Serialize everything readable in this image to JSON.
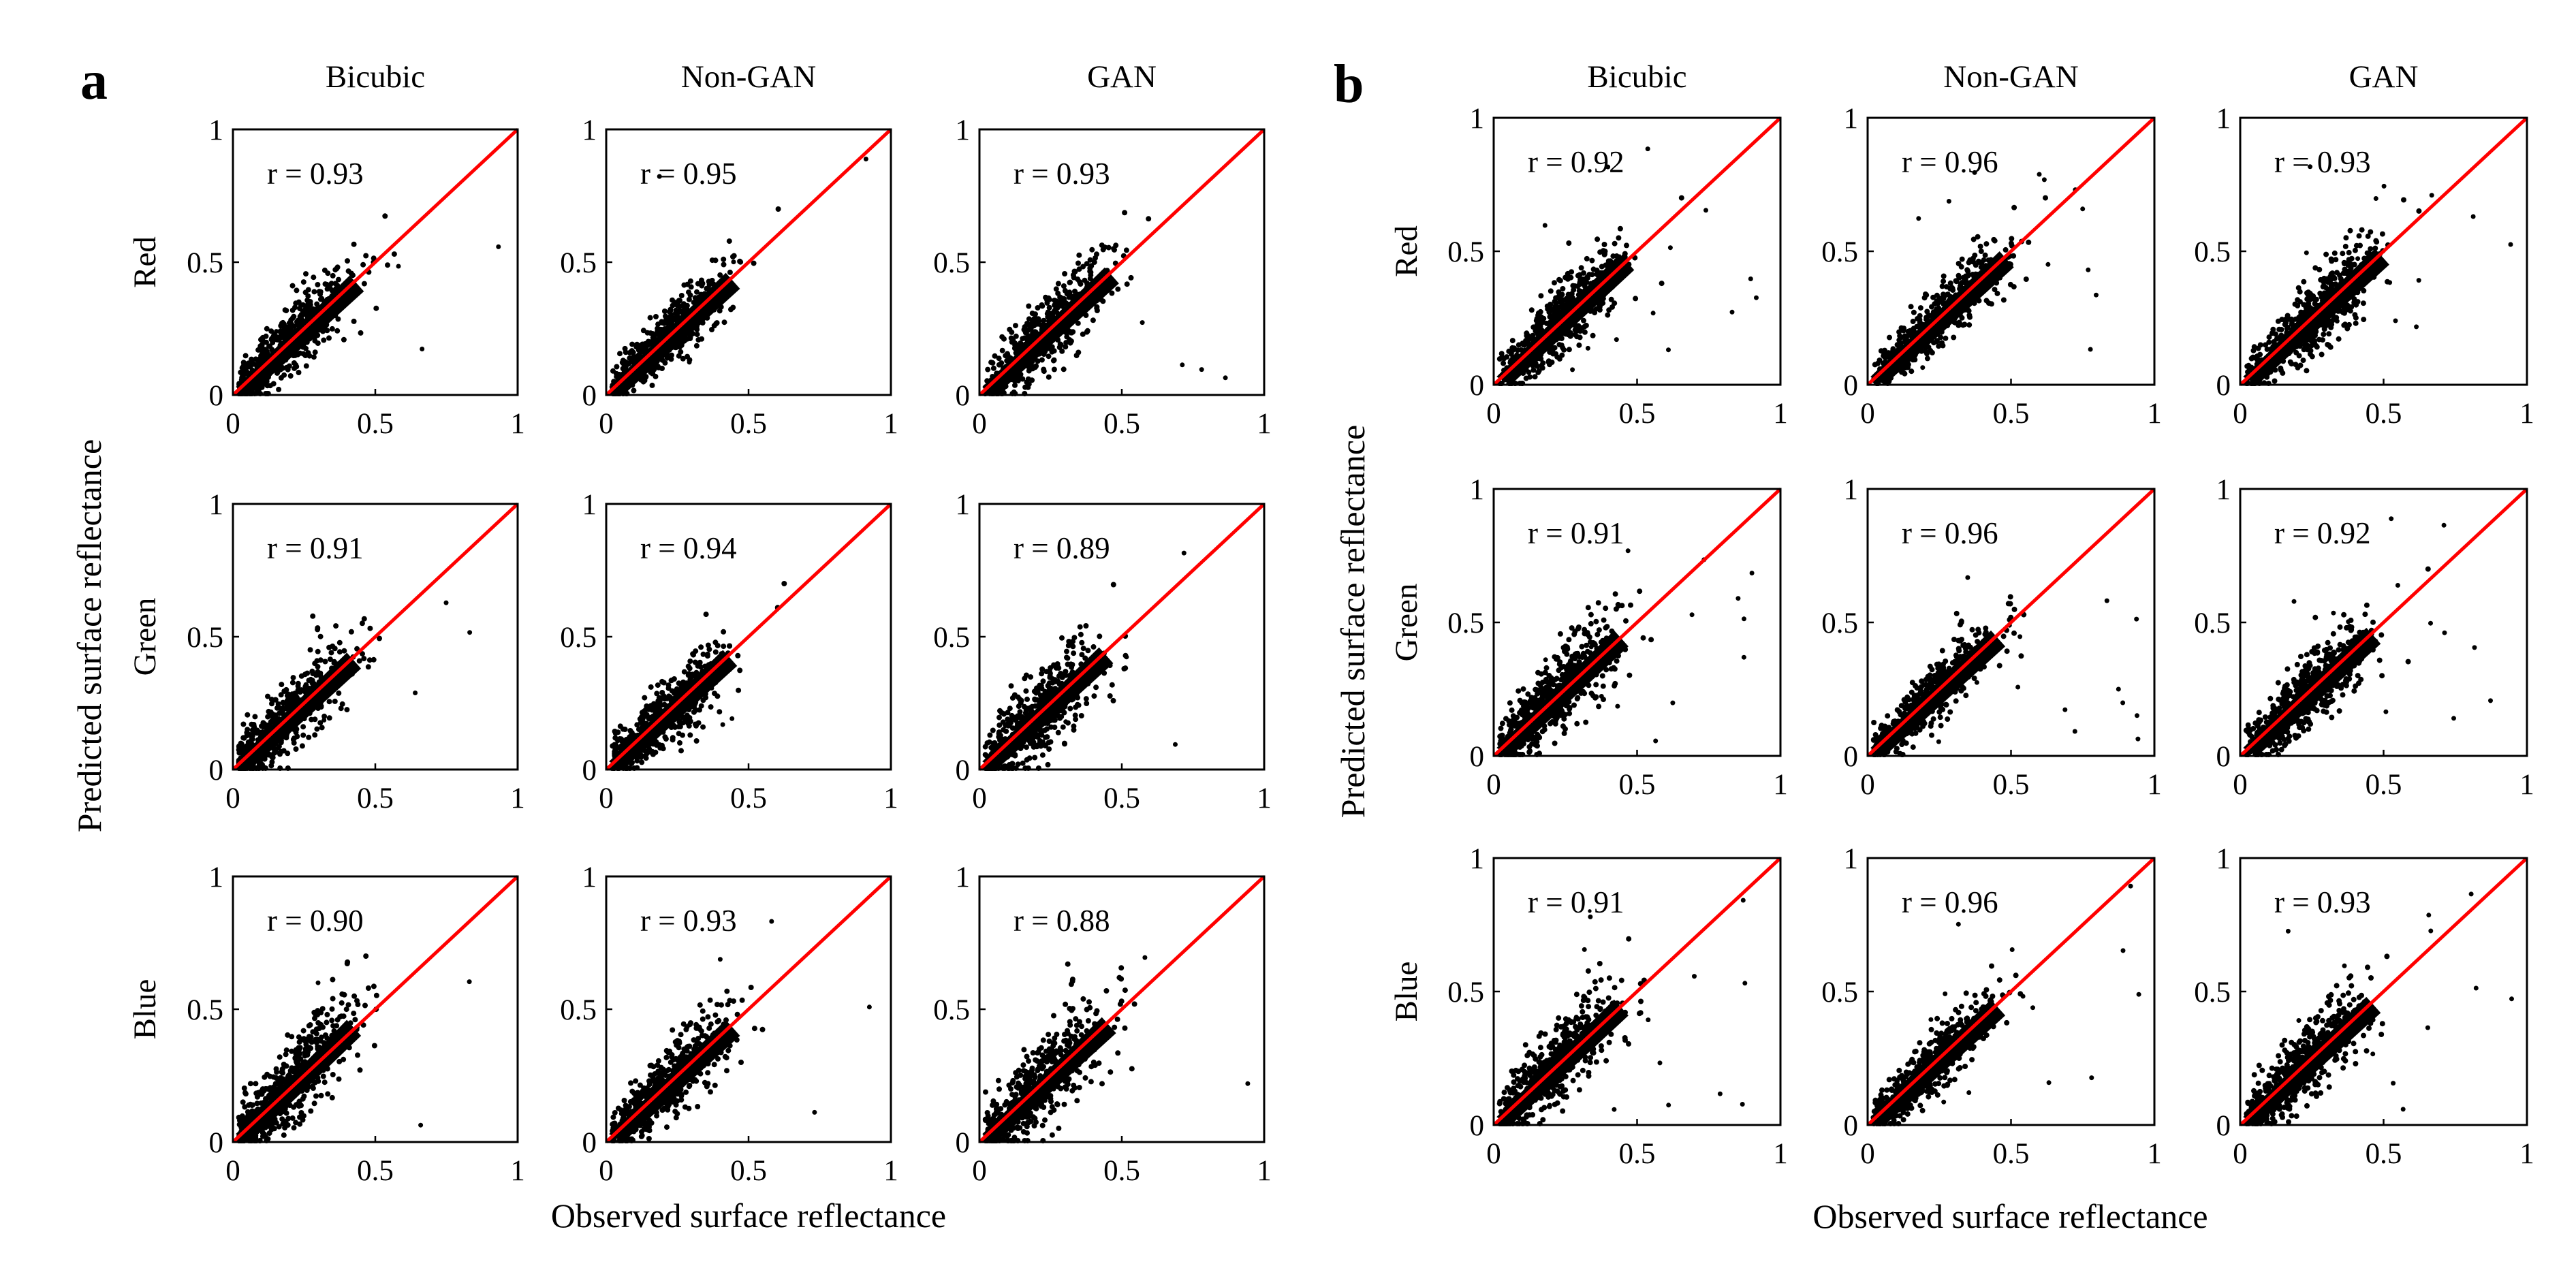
{
  "chart_data": {
    "type": "scatter",
    "colors": {
      "points": "#000000",
      "identity_line": "#ff0000",
      "frame": "#000000"
    },
    "xlim": [
      0,
      1
    ],
    "ylim": [
      0,
      1
    ],
    "grid": false,
    "x_ticks": [
      "0",
      "0.5",
      "1"
    ],
    "y_ticks": [
      "0",
      "0.5",
      "1"
    ],
    "panels": [
      {
        "letter": "a",
        "columns": [
          "Bicubic",
          "Non-GAN",
          "GAN"
        ],
        "rows": [
          "Red",
          "Green",
          "Blue"
        ],
        "xlabel": "Observed surface reflectance",
        "ylabel": "Predicted surface reflectance",
        "r_values": [
          [
            "r = 0.93",
            "r = 0.95",
            "r = 0.93"
          ],
          [
            "r = 0.91",
            "r = 0.94",
            "r = 0.89"
          ],
          [
            "r = 0.90",
            "r = 0.93",
            "r = 0.88"
          ]
        ],
        "clouds": [
          [
            [
              0.19,
              0.19
            ],
            [
              0.2,
              0.2
            ],
            [
              0.22,
              0.22
            ]
          ],
          [
            [
              0.18,
              0.18
            ],
            [
              0.19,
              0.19
            ],
            [
              0.2,
              0.2
            ]
          ],
          [
            [
              0.18,
              0.2
            ],
            [
              0.2,
              0.2
            ],
            [
              0.21,
              0.21
            ]
          ]
        ]
      },
      {
        "letter": "b",
        "columns": [
          "Bicubic",
          "Non-GAN",
          "GAN"
        ],
        "rows": [
          "Red",
          "Green",
          "Blue"
        ],
        "xlabel": "Observed surface reflectance",
        "ylabel": "Predicted surface reflectance",
        "r_values": [
          [
            "r = 0.92",
            "r = 0.96",
            "r = 0.93"
          ],
          [
            "r = 0.91",
            "r = 0.96",
            "r = 0.92"
          ],
          [
            "r = 0.91",
            "r = 0.96",
            "r = 0.93"
          ]
        ],
        "clouds": [
          [
            [
              0.22,
              0.23
            ],
            [
              0.24,
              0.24
            ],
            [
              0.25,
              0.25
            ]
          ],
          [
            [
              0.2,
              0.21
            ],
            [
              0.21,
              0.21
            ],
            [
              0.22,
              0.22
            ]
          ],
          [
            [
              0.2,
              0.21
            ],
            [
              0.21,
              0.21
            ],
            [
              0.22,
              0.22
            ]
          ]
        ]
      }
    ]
  }
}
